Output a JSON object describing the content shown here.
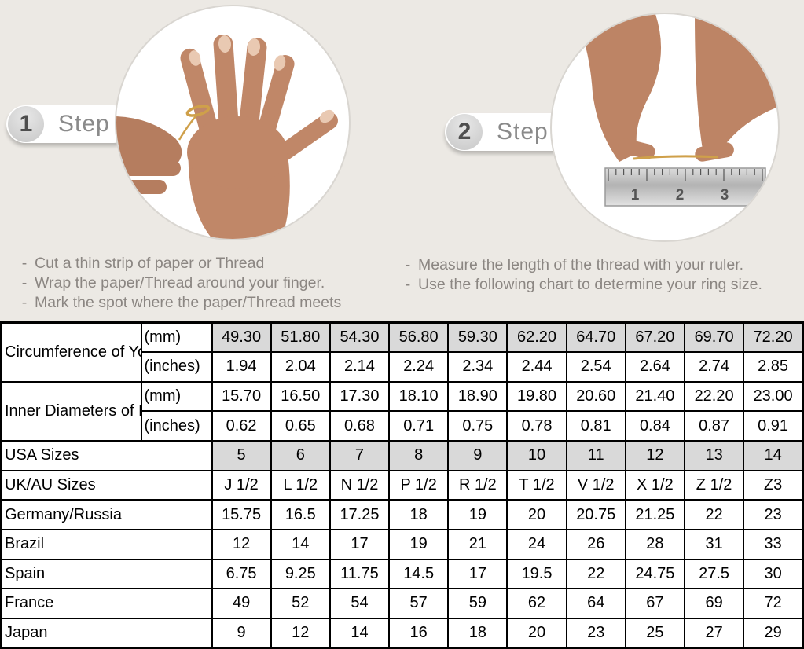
{
  "colors": {
    "page_background": "#ece9e4",
    "table_shaded_cell": "#d9d9d9",
    "table_border": "#000000",
    "instruction_text": "#8b8682",
    "badge_text": "#8a8a8a",
    "skin_tone": "#c08768",
    "thread_gold": "#cfa04a",
    "ruler_gray": "#c9c9c9"
  },
  "steps": [
    {
      "number": "1",
      "label": "Step",
      "photo": "hand-with-thread-wrapped-around-finger",
      "instructions": [
        "Cut a thin strip of paper or Thread",
        "Wrap the paper/Thread around your finger.",
        "Mark the spot where the paper/Thread meets"
      ]
    },
    {
      "number": "2",
      "label": "Step",
      "photo": "hands-measuring-thread-with-ruler",
      "ruler_numbers": [
        "1",
        "2",
        "3"
      ],
      "instructions": [
        "Measure the length of the thread with your ruler.",
        "Use the following chart to determine your ring size."
      ]
    }
  ],
  "chart_data": {
    "type": "table",
    "columns": 10,
    "measure_groups": [
      {
        "label": "Circumference of Your Finger",
        "rows": [
          {
            "unit": "(mm)",
            "shaded": true,
            "values": [
              "49.30",
              "51.80",
              "54.30",
              "56.80",
              "59.30",
              "62.20",
              "64.70",
              "67.20",
              "69.70",
              "72.20"
            ]
          },
          {
            "unit": "(inches)",
            "shaded": false,
            "values": [
              "1.94",
              "2.04",
              "2.14",
              "2.24",
              "2.34",
              "2.44",
              "2.54",
              "2.64",
              "2.74",
              "2.85"
            ]
          }
        ]
      },
      {
        "label": "Inner Diameters of Rings",
        "rows": [
          {
            "unit": "(mm)",
            "shaded": false,
            "values": [
              "15.70",
              "16.50",
              "17.30",
              "18.10",
              "18.90",
              "19.80",
              "20.60",
              "21.40",
              "22.20",
              "23.00"
            ]
          },
          {
            "unit": "(inches)",
            "shaded": false,
            "values": [
              "0.62",
              "0.65",
              "0.68",
              "0.71",
              "0.75",
              "0.78",
              "0.81",
              "0.84",
              "0.87",
              "0.91"
            ]
          }
        ]
      }
    ],
    "size_rows": [
      {
        "label": "USA Sizes",
        "shaded": true,
        "values": [
          "5",
          "6",
          "7",
          "8",
          "9",
          "10",
          "11",
          "12",
          "13",
          "14"
        ]
      },
      {
        "label": "UK/AU Sizes",
        "shaded": false,
        "values": [
          "J 1/2",
          "L 1/2",
          "N 1/2",
          "P 1/2",
          "R 1/2",
          "T 1/2",
          "V 1/2",
          "X 1/2",
          "Z 1/2",
          "Z3"
        ]
      },
      {
        "label": "Germany/Russia",
        "shaded": false,
        "values": [
          "15.75",
          "16.5",
          "17.25",
          "18",
          "19",
          "20",
          "20.75",
          "21.25",
          "22",
          "23"
        ]
      },
      {
        "label": "Brazil",
        "shaded": false,
        "values": [
          "12",
          "14",
          "17",
          "19",
          "21",
          "24",
          "26",
          "28",
          "31",
          "33"
        ]
      },
      {
        "label": "Spain",
        "shaded": false,
        "values": [
          "6.75",
          "9.25",
          "11.75",
          "14.5",
          "17",
          "19.5",
          "22",
          "24.75",
          "27.5",
          "30"
        ]
      },
      {
        "label": "France",
        "shaded": false,
        "values": [
          "49",
          "52",
          "54",
          "57",
          "59",
          "62",
          "64",
          "67",
          "69",
          "72"
        ]
      },
      {
        "label": "Japan",
        "shaded": false,
        "values": [
          "9",
          "12",
          "14",
          "16",
          "18",
          "20",
          "23",
          "25",
          "27",
          "29"
        ]
      }
    ]
  }
}
